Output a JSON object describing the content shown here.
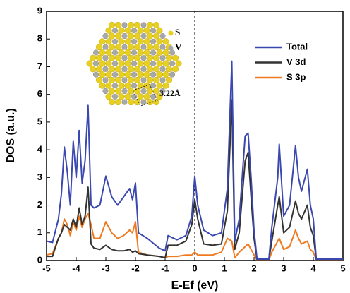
{
  "chart_data": {
    "type": "line",
    "xlabel": "E-Ef (eV)",
    "ylabel": "DOS (a.u.)",
    "x": [
      -5,
      -4.8,
      -4.6,
      -4.5,
      -4.4,
      -4.3,
      -4.2,
      -4.1,
      -4.0,
      -3.9,
      -3.8,
      -3.7,
      -3.6,
      -3.5,
      -3.4,
      -3.2,
      -3.0,
      -2.8,
      -2.6,
      -2.4,
      -2.2,
      -2.1,
      -2.0,
      -1.9,
      -1.6,
      -1.2,
      -1.0,
      -0.9,
      -0.6,
      -0.3,
      -0.1,
      0,
      0.1,
      0.3,
      0.6,
      0.9,
      1.1,
      1.25,
      1.35,
      1.5,
      1.7,
      1.8,
      1.9,
      2.0,
      2.1,
      2.5,
      2.6,
      2.8,
      2.85,
      3.0,
      3.2,
      3.4,
      3.5,
      3.6,
      3.8,
      3.9,
      4.0,
      4.1,
      5
    ],
    "series": [
      {
        "name": "Total",
        "color": "#3a48b0",
        "values": [
          0.7,
          0.65,
          1.5,
          2.4,
          4.1,
          3.2,
          2.0,
          4.3,
          3.0,
          4.7,
          2.8,
          3.6,
          5.6,
          2.0,
          1.9,
          2.0,
          3.05,
          2.3,
          2.0,
          2.3,
          2.6,
          2.2,
          2.8,
          1.0,
          0.8,
          0.45,
          0.35,
          0.9,
          0.75,
          0.9,
          1.6,
          3.05,
          2.0,
          1.1,
          0.9,
          1.0,
          2.6,
          7.2,
          0.7,
          1.5,
          4.5,
          4.6,
          3.0,
          1.1,
          0.05,
          0.05,
          1.2,
          3.0,
          4.2,
          1.6,
          2.0,
          4.15,
          3.0,
          2.5,
          3.3,
          2.0,
          1.5,
          0.05,
          0.05
        ]
      },
      {
        "name": "V 3d",
        "color": "#333333",
        "values": [
          0.15,
          0.15,
          0.8,
          1.0,
          1.3,
          1.2,
          1.1,
          1.5,
          1.2,
          1.9,
          1.3,
          1.6,
          2.65,
          0.6,
          0.45,
          0.4,
          0.55,
          0.4,
          0.35,
          0.35,
          0.4,
          0.3,
          0.35,
          0.25,
          0.2,
          0.15,
          0.1,
          0.55,
          0.55,
          0.7,
          1.3,
          2.2,
          1.5,
          0.6,
          0.55,
          0.6,
          1.8,
          5.8,
          0.4,
          1.0,
          3.6,
          3.9,
          2.3,
          0.8,
          0.03,
          0.03,
          0.7,
          2.0,
          2.3,
          1.0,
          1.2,
          2.15,
          1.7,
          1.5,
          2.0,
          1.2,
          0.9,
          0.03,
          0.03
        ]
      },
      {
        "name": "S 3p",
        "color": "#f07a20",
        "values": [
          0.2,
          0.25,
          0.8,
          1.0,
          1.5,
          1.3,
          0.9,
          1.4,
          1.1,
          1.6,
          1.2,
          1.5,
          1.7,
          1.3,
          0.8,
          0.8,
          1.4,
          1.0,
          0.8,
          0.9,
          1.1,
          1.0,
          1.4,
          0.3,
          0.2,
          0.15,
          0.1,
          0.15,
          0.15,
          0.2,
          0.2,
          0.3,
          0.2,
          0.2,
          0.2,
          0.3,
          0.8,
          0.7,
          0.1,
          0.3,
          0.5,
          0.6,
          0.4,
          0.2,
          0.02,
          0.02,
          0.3,
          0.7,
          0.8,
          0.4,
          0.5,
          1.1,
          0.8,
          0.6,
          0.7,
          0.4,
          0.3,
          0.02,
          0.02
        ]
      }
    ],
    "xlim": [
      -5,
      5
    ],
    "xticks": [
      -5,
      -4,
      -3,
      -2,
      -1,
      0,
      1,
      2,
      3,
      4,
      5
    ],
    "ylim": [
      0,
      9
    ],
    "yticks": [
      0,
      1,
      2,
      3,
      4,
      5,
      6,
      7,
      8,
      9
    ],
    "reference_line_x": 0,
    "legend": "upper-right",
    "annotations": [
      "S",
      "V",
      "3.22Å"
    ]
  }
}
